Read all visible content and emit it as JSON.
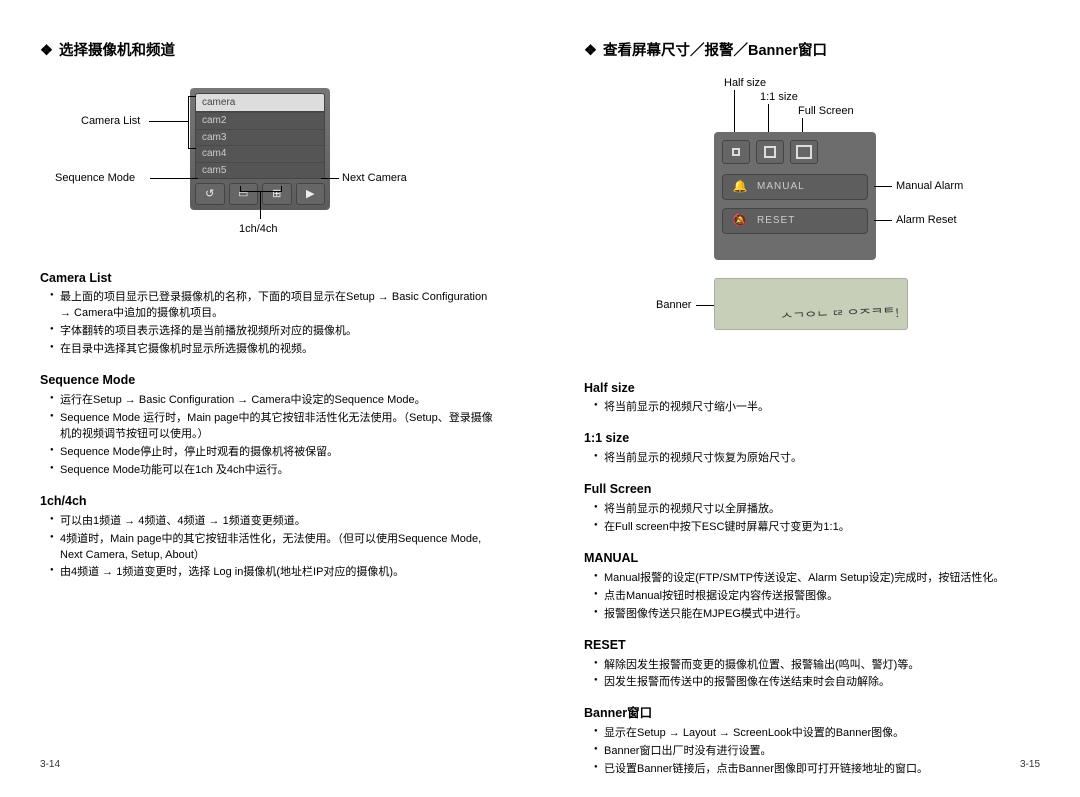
{
  "left": {
    "title": "选择摄像机和频道",
    "diagram": {
      "camera_list_label": "Camera List",
      "sequence_mode_label": "Sequence Mode",
      "next_camera_label": "Next Camera",
      "onech_fourch_label": "1ch/4ch",
      "camera_header": "camera",
      "camera_items": [
        "cam2",
        "cam3",
        "cam4",
        "cam5"
      ],
      "toolbar_icons": [
        "seq",
        "1ch",
        "4ch",
        "next"
      ]
    },
    "sections": [
      {
        "head": "Camera List",
        "items": [
          "最上面的项目显示已登录摄像机的名称，下面的项目显示在Setup → Basic Configuration → Camera中追加的摄像机项目。",
          "字体翻转的项目表示选择的是当前播放视频所对应的摄像机。",
          "在目录中选择其它摄像机时显示所选摄像机的视频。"
        ]
      },
      {
        "head": "Sequence Mode",
        "items": [
          "运行在Setup → Basic Configuration → Camera中设定的Sequence Mode。",
          "Sequence Mode 运行时，Main page中的其它按钮非活性化无法使用。（Setup、登录摄像机的视频调节按钮可以使用。）",
          "Sequence Mode停止时，停止时观看的摄像机将被保留。",
          "Sequence Mode功能可以在1ch 及4ch中运行。"
        ]
      },
      {
        "head": "1ch/4ch",
        "items": [
          "可以由1频道 → 4频道、4频道 → 1频道变更频道。",
          "4频道时，Main page中的其它按钮非活性化，无法使用。（但可以使用Sequence Mode, Next Camera, Setup, About）",
          "由4频道 → 1频道变更时，选择 Log in摄像机(地址栏IP对应的摄像机)。"
        ]
      }
    ],
    "page_num": "3-14"
  },
  "right": {
    "title": "查看屏幕尺寸／报警／Banner窗口",
    "diagram": {
      "half_size_label": "Half size",
      "one_one_label": "1:1 size",
      "full_screen_label": "Full Screen",
      "manual_alarm_label": "Manual Alarm",
      "alarm_reset_label": "Alarm Reset",
      "banner_label": "Banner",
      "pill_manual": "MANUAL",
      "pill_reset": "RESET",
      "banner_scribble": "ᄉᄀᄋᄂ ᄃᄅ ᄋᄌᄏᄐ!"
    },
    "sections": [
      {
        "head": "Half size",
        "items": [
          "将当前显示的视频尺寸缩小一半。"
        ]
      },
      {
        "head": "1:1 size",
        "items": [
          "将当前显示的视频尺寸恢复为原始尺寸。"
        ]
      },
      {
        "head": "Full Screen",
        "items": [
          "将当前显示的视频尺寸以全屏播放。",
          "在Full screen中按下ESC键时屏幕尺寸变更为1:1。"
        ]
      },
      {
        "head": "MANUAL",
        "items": [
          "Manual报警的设定(FTP/SMTP传送设定、Alarm Setup设定)完成时，按钮活性化。",
          "点击Manual按钮时根据设定内容传送报警图像。",
          "报警图像传送只能在MJPEG模式中进行。"
        ]
      },
      {
        "head": "RESET",
        "items": [
          "解除因发生报警而变更的摄像机位置、报警输出(鸣叫、警灯)等。",
          "因发生报警而传送中的报警图像在传送结束时会自动解除。"
        ]
      },
      {
        "head": "Banner窗口",
        "items": [
          "显示在Setup → Layout → ScreenLook中设置的Banner图像。",
          "Banner窗口出厂时没有进行设置。",
          "已设置Banner链接后，点击Banner图像即可打开链接地址的窗口。"
        ]
      }
    ],
    "page_num": "3-15"
  }
}
